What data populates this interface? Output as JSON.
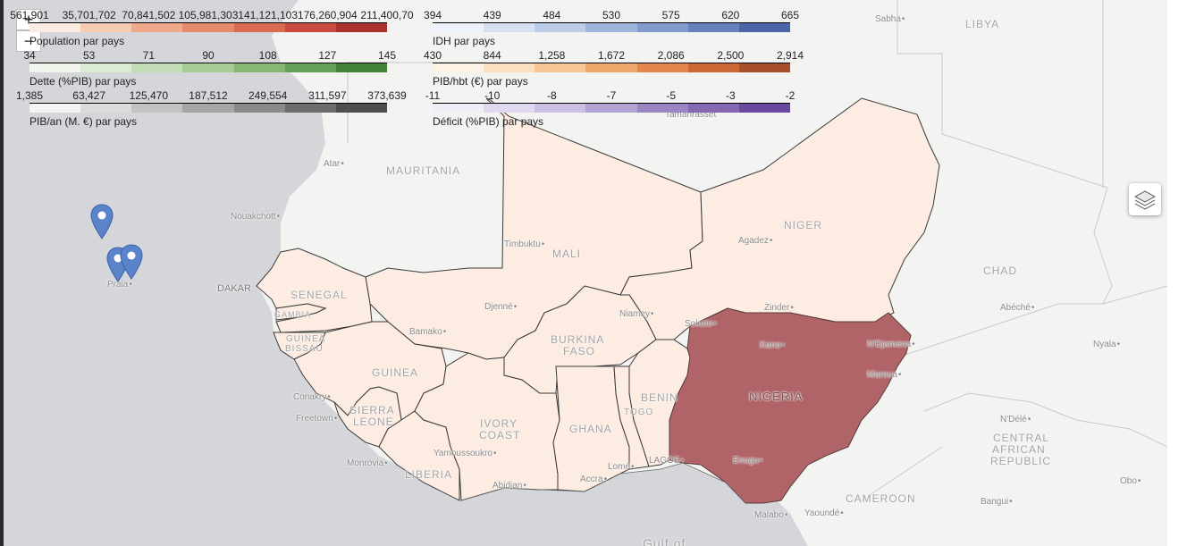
{
  "legends": [
    {
      "caption": "Population par pays",
      "ticks": [
        "561,901",
        "35,701,702",
        "70,841,502",
        "105,981,303",
        "141,121,103",
        "176,260,904",
        "211,400,70"
      ],
      "colors": [
        "#fcebe1",
        "#f6cbb4",
        "#efaa8c",
        "#e78a6c",
        "#db6a53",
        "#c94a40",
        "#a8312e"
      ]
    },
    {
      "caption": "IDH par pays",
      "ticks": [
        "394",
        "439",
        "484",
        "530",
        "575",
        "620",
        "665"
      ],
      "colors": [
        "#eef2fa",
        "#d7e1f3",
        "#bccde9",
        "#9fb5dc",
        "#819bcd",
        "#6582bc",
        "#4a66a6"
      ]
    },
    {
      "caption": "Dette (%PIB) par pays",
      "ticks": [
        "34",
        "53",
        "71",
        "90",
        "108",
        "127",
        "145"
      ],
      "colors": [
        "#f0f6ec",
        "#dcebd4",
        "#c3ddb6",
        "#a6cd95",
        "#86b874",
        "#65a056",
        "#44823a"
      ]
    },
    {
      "caption": "PIB/hbt (€) par pays",
      "ticks": [
        "430",
        "844",
        "1,258",
        "1,672",
        "2,086",
        "2,500",
        "2,914"
      ],
      "colors": [
        "#fdf2e3",
        "#fbe0bd",
        "#f6c792",
        "#efa86b",
        "#e28649",
        "#cd6735",
        "#a84f2c"
      ]
    },
    {
      "caption": "PIB/an (M. €) par pays",
      "ticks": [
        "1,385",
        "63,427",
        "125,470",
        "187,512",
        "249,554",
        "311,597",
        "373,639"
      ],
      "colors": [
        "#f4f4f4",
        "#dcdcdc",
        "#c2c2c2",
        "#a6a6a6",
        "#8a8a8a",
        "#6c6c6c",
        "#4e4e4e"
      ]
    },
    {
      "caption": "Déficit (%PIB) par pays",
      "ticks": [
        "-11",
        "-10",
        "-8",
        "-7",
        "-5",
        "-3",
        "-2"
      ],
      "colors": [
        "#f1eef8",
        "#dfd8ee",
        "#cbbfe2",
        "#b3a3d4",
        "#9b86c4",
        "#8468b3",
        "#6a4a9f"
      ]
    }
  ],
  "zoom": {
    "in": "+",
    "out": "−"
  },
  "layers_icon": "layers-icon",
  "colors": {
    "sea": "#d4d6da",
    "land": "#f3f3f2",
    "country_fill": "#fcece2",
    "nigeria_fill": "#b06467",
    "border": "#3a3a3a"
  },
  "countries": {
    "mauritania": "MAURITANIA",
    "libya": "LIBYA",
    "niger": "NIGER",
    "chad": "CHAD",
    "mali": "MALI",
    "senegal": "SENEGAL",
    "gambia": "GAMBIA",
    "guinea_bissau_1": "GUINEA",
    "guinea_bissau_2": "BISSAU",
    "guinea": "GUINEA",
    "burkina_1": "BURKINA",
    "burkina_2": "FASO",
    "sierra_1": "SIERRA",
    "sierra_2": "LEONE",
    "ivory_1": "IVORY",
    "ivory_2": "COAST",
    "liberia": "LIBERIA",
    "ghana": "GHANA",
    "togo": "TOGO",
    "benin": "BENIN",
    "nigeria": "NIGERIA",
    "car_1": "CENTRAL",
    "car_2": "AFRICAN",
    "car_3": "REPUBLIC",
    "cameroon": "CAMEROON",
    "gulf": "Gulf of"
  },
  "cities": {
    "sabha": "Sabha",
    "tamanrasset": "Tamanrasset",
    "atar": "Atar",
    "nouakchott": "Nouakchott",
    "dakar": "DAKAR",
    "praia": "Praia",
    "timbuktu": "Timbuktu",
    "agadez": "Agadez",
    "djenne": "Djenné",
    "bamako": "Bamako",
    "niamey": "Niamey",
    "zinder": "Zinder",
    "sokoto": "Sokoto",
    "kano": "Kano",
    "ndjamena": "N'Djamena",
    "abeche": "Abéché",
    "nyala": "Nyala",
    "maroua": "Maroua",
    "conakry": "Conakry",
    "freetown": "Freetown",
    "monrovia": "Monrovia",
    "yamoussoukro": "Yamoussoukro",
    "abidjan": "Abidjan",
    "accra": "Accra",
    "lome": "Lomé",
    "lagos": "LAGOS",
    "enugu": "Enugu",
    "ndele": "N'Délé",
    "bangui": "Bangui",
    "obo": "Obo",
    "malabo": "Malabo",
    "yaounde": "Yaoundé"
  }
}
